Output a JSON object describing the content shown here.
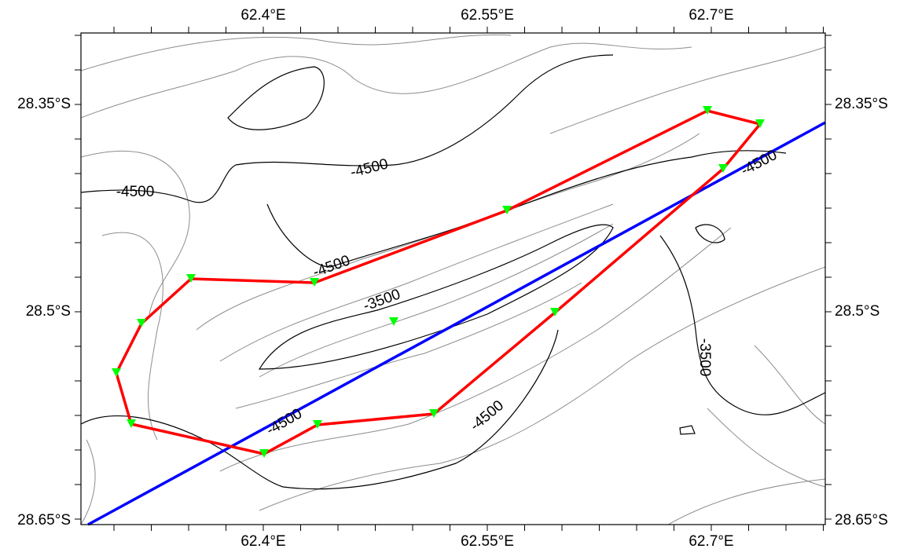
{
  "map": {
    "lon_labels": [
      "62.4°E",
      "62.55°E",
      "62.7°E"
    ],
    "lat_labels": [
      "28.35°S",
      "28.5°S",
      "28.65°S"
    ],
    "contour_labels": [
      "-4500",
      "-4500",
      "-4500",
      "-3500",
      "-4500",
      "-4500",
      "-4500",
      "-3500"
    ]
  }
}
